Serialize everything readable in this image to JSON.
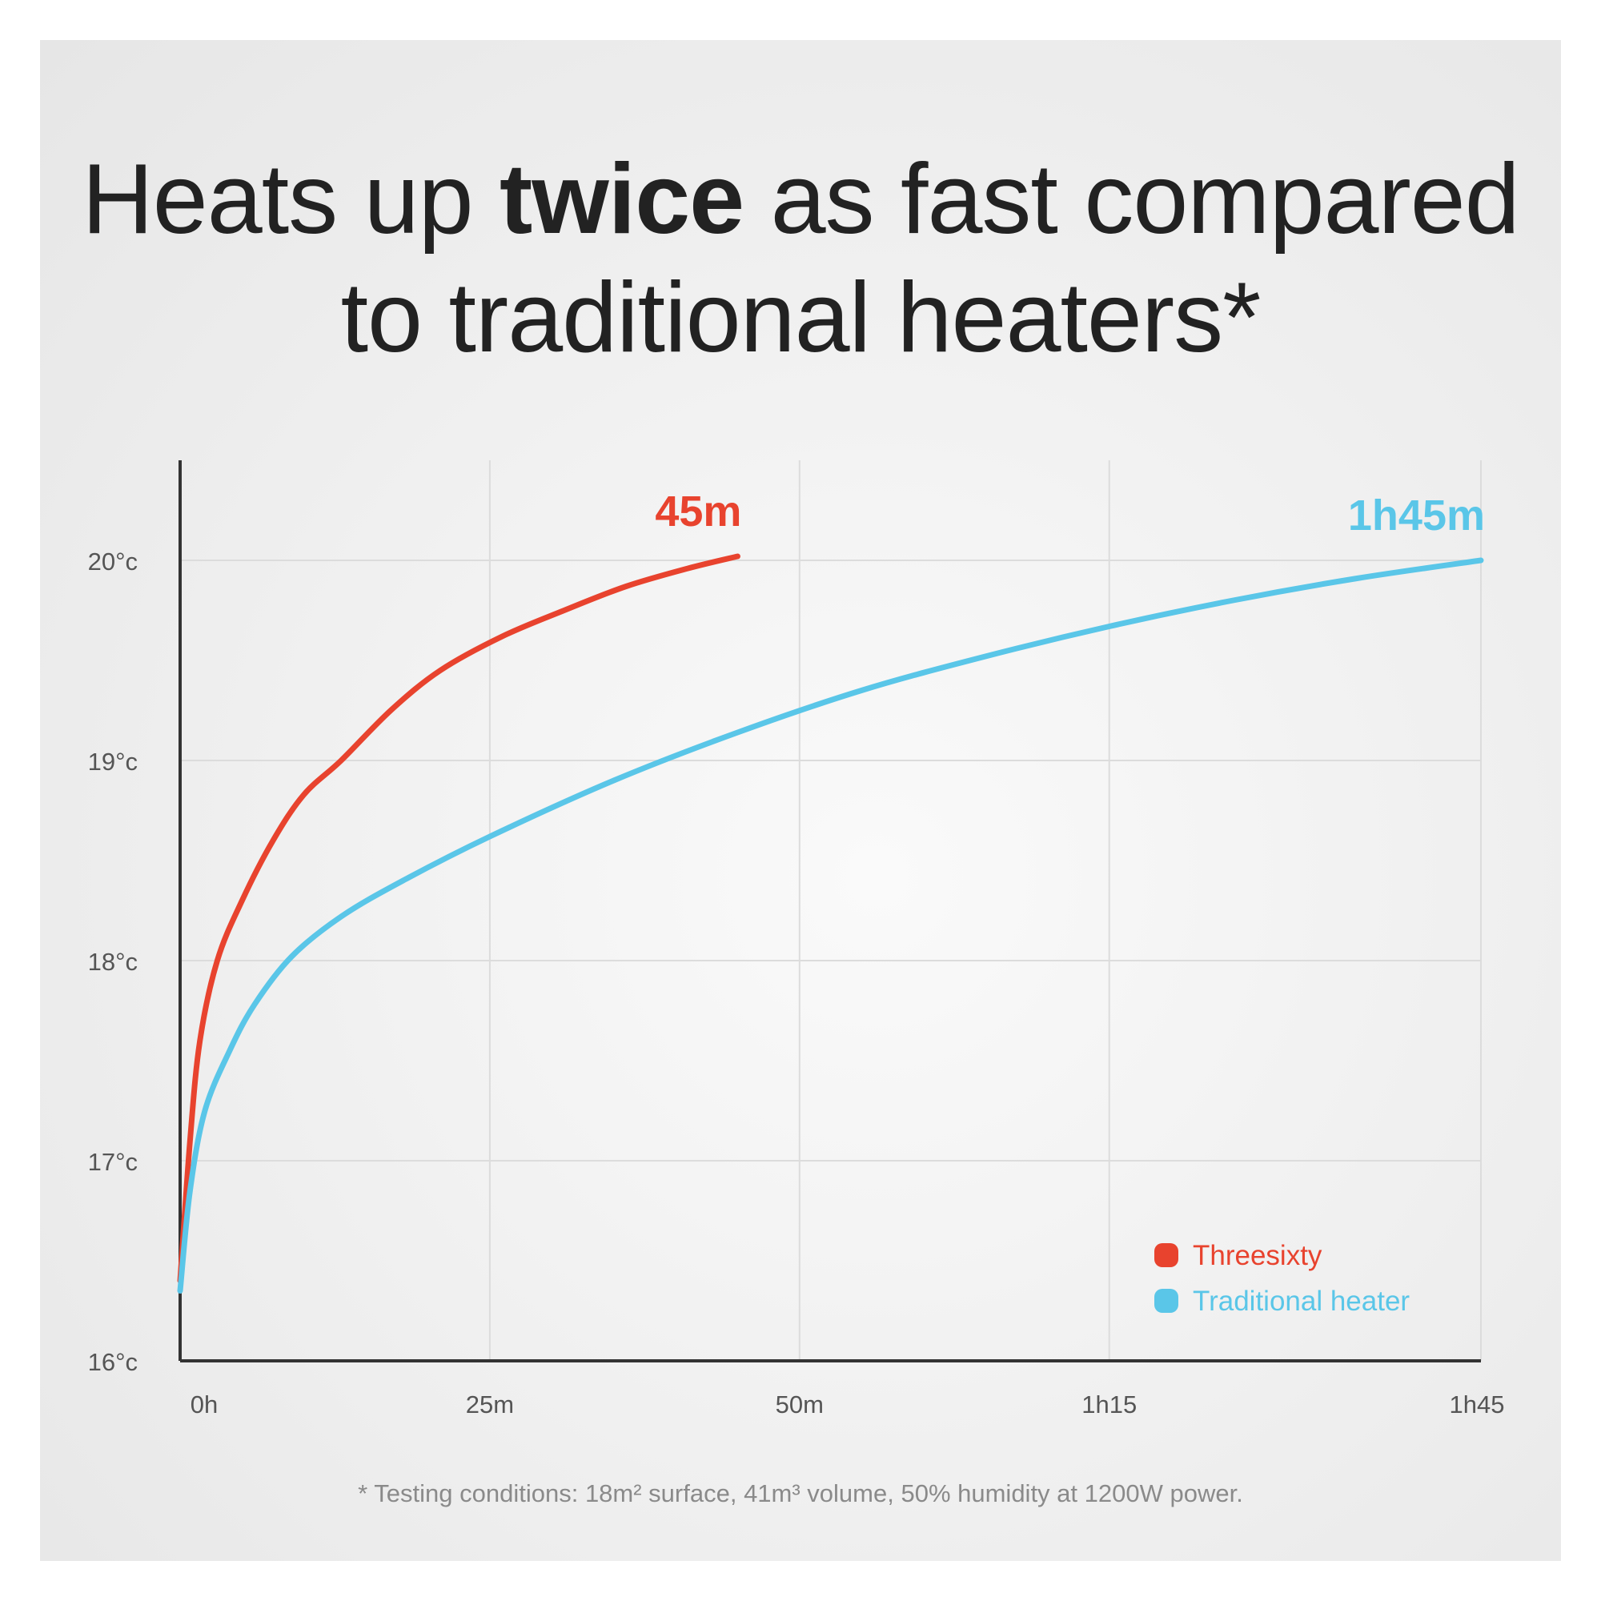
{
  "title": {
    "part1": "Heats up ",
    "bold": "twice",
    "part2": " as fast compared",
    "line2": "to traditional heaters*"
  },
  "footnote": "* Testing conditions: 18m² surface, 41m³ volume, 50% humidity at 1200W power.",
  "colors": {
    "threesixty": "#e8432e",
    "traditional": "#5ac6e8",
    "axis": "#333333",
    "grid": "#dcdcdc",
    "tick_label": "#555555"
  },
  "chart_data": {
    "type": "line",
    "x_unit": "minutes",
    "xlim": [
      0,
      105
    ],
    "ylim": [
      16,
      20.5
    ],
    "grid": true,
    "legend_position": "bottom-right",
    "x_ticks": [
      {
        "value": 0,
        "label": "0h"
      },
      {
        "value": 25,
        "label": "25m"
      },
      {
        "value": 50,
        "label": "50m"
      },
      {
        "value": 75,
        "label": "1h15"
      },
      {
        "value": 105,
        "label": "1h45"
      }
    ],
    "y_ticks": [
      {
        "value": 16,
        "label": "16°c"
      },
      {
        "value": 17,
        "label": "17°c"
      },
      {
        "value": 18,
        "label": "18°c"
      },
      {
        "value": 19,
        "label": "19°c"
      },
      {
        "value": 20,
        "label": "20°c"
      }
    ],
    "series": [
      {
        "name": "Threesixty",
        "color": "#e8432e",
        "end_label": "45m",
        "x": [
          0,
          0.8,
          1.6,
          3,
          5,
          7.5,
          10,
          13,
          17,
          21,
          26,
          31,
          36,
          41,
          45
        ],
        "y": [
          16.4,
          17.1,
          17.6,
          18.0,
          18.3,
          18.6,
          18.83,
          19.0,
          19.25,
          19.45,
          19.62,
          19.75,
          19.87,
          19.96,
          20.02
        ]
      },
      {
        "name": "Traditional heater",
        "color": "#5ac6e8",
        "end_label": "1h45m",
        "x": [
          0,
          0.8,
          2,
          4,
          6,
          9,
          13,
          18,
          25,
          35,
          45,
          55,
          65,
          75,
          85,
          95,
          105
        ],
        "y": [
          16.35,
          16.85,
          17.25,
          17.55,
          17.78,
          18.02,
          18.22,
          18.4,
          18.62,
          18.9,
          19.14,
          19.35,
          19.52,
          19.67,
          19.8,
          19.91,
          20.0
        ]
      }
    ]
  }
}
